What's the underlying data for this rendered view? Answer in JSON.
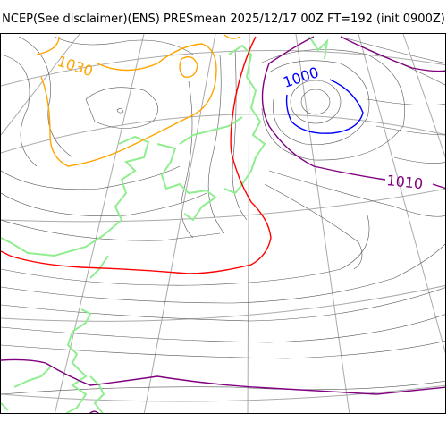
{
  "header": {
    "title": "NCEP(See disclaimer)(ENS) PRESmean 2025/12/17 00Z FT=192 (init 0900Z)"
  },
  "map": {
    "colors": {
      "frame": "#000000",
      "graticule": "#aaaaaa",
      "isobar": "#555555",
      "coastline": "#90ee90",
      "contour_1030": "#ffa500",
      "contour_1020": "#ff0000",
      "contour_1010": "#800080",
      "contour_1000": "#0000ff"
    },
    "labels": {
      "high_1030": "1030",
      "low_1000": "1000",
      "mid_1010": "1010"
    }
  }
}
